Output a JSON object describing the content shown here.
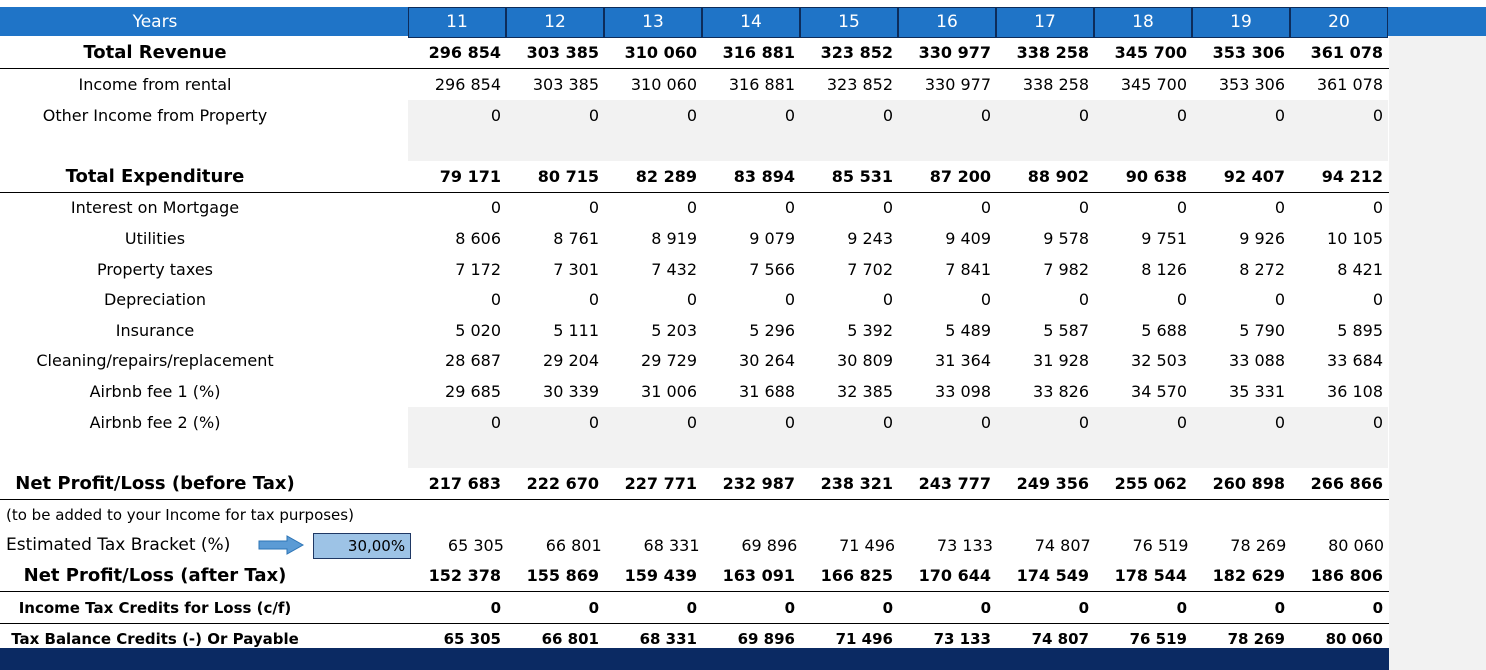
{
  "header": {
    "label": "Years",
    "years": [
      "11",
      "12",
      "13",
      "14",
      "15",
      "16",
      "17",
      "18",
      "19",
      "20"
    ]
  },
  "rows": [
    {
      "key": "total_revenue",
      "label": "Total Revenue",
      "values": [
        "296 854",
        "303 385",
        "310 060",
        "316 881",
        "323 852",
        "330 977",
        "338 258",
        "345 700",
        "353 306",
        "361 078"
      ]
    },
    {
      "key": "income_rental",
      "label": "Income from rental",
      "values": [
        "296 854",
        "303 385",
        "310 060",
        "316 881",
        "323 852",
        "330 977",
        "338 258",
        "345 700",
        "353 306",
        "361 078"
      ]
    },
    {
      "key": "other_income",
      "label": "Other Income from Property",
      "values": [
        "0",
        "0",
        "0",
        "0",
        "0",
        "0",
        "0",
        "0",
        "0",
        "0"
      ]
    },
    {
      "key": "total_expenditure",
      "label": "Total Expenditure",
      "values": [
        "79 171",
        "80 715",
        "82 289",
        "83 894",
        "85 531",
        "87 200",
        "88 902",
        "90 638",
        "92 407",
        "94 212"
      ]
    },
    {
      "key": "interest_mortgage",
      "label": "Interest on Mortgage",
      "values": [
        "0",
        "0",
        "0",
        "0",
        "0",
        "0",
        "0",
        "0",
        "0",
        "0"
      ]
    },
    {
      "key": "utilities",
      "label": "Utilities",
      "values": [
        "8 606",
        "8 761",
        "8 919",
        "9 079",
        "9 243",
        "9 409",
        "9 578",
        "9 751",
        "9 926",
        "10 105"
      ]
    },
    {
      "key": "property_taxes",
      "label": "Property taxes",
      "values": [
        "7 172",
        "7 301",
        "7 432",
        "7 566",
        "7 702",
        "7 841",
        "7 982",
        "8 126",
        "8 272",
        "8 421"
      ]
    },
    {
      "key": "depreciation",
      "label": "Depreciation",
      "values": [
        "0",
        "0",
        "0",
        "0",
        "0",
        "0",
        "0",
        "0",
        "0",
        "0"
      ]
    },
    {
      "key": "insurance",
      "label": "Insurance",
      "values": [
        "5 020",
        "5 111",
        "5 203",
        "5 296",
        "5 392",
        "5 489",
        "5 587",
        "5 688",
        "5 790",
        "5 895"
      ]
    },
    {
      "key": "cleaning",
      "label": "Cleaning/repairs/replacement",
      "values": [
        "28 687",
        "29 204",
        "29 729",
        "30 264",
        "30 809",
        "31 364",
        "31 928",
        "32 503",
        "33 088",
        "33 684"
      ]
    },
    {
      "key": "airbnb_fee1",
      "label": "Airbnb fee 1 (%)",
      "values": [
        "29 685",
        "30 339",
        "31 006",
        "31 688",
        "32 385",
        "33 098",
        "33 826",
        "34 570",
        "35 331",
        "36 108"
      ]
    },
    {
      "key": "airbnb_fee2",
      "label": "Airbnb fee 2 (%)",
      "values": [
        "0",
        "0",
        "0",
        "0",
        "0",
        "0",
        "0",
        "0",
        "0",
        "0"
      ]
    },
    {
      "key": "net_before_tax",
      "label": "Net Profit/Loss (before Tax)",
      "values": [
        "217 683",
        "222 670",
        "227 771",
        "232 987",
        "238 321",
        "243 777",
        "249 356",
        "255 062",
        "260 898",
        "266 866"
      ]
    },
    {
      "key": "tax",
      "label": "Estimated Tax Bracket (%)",
      "values": [
        "65 305",
        "66 801",
        "68 331",
        "69 896",
        "71 496",
        "73 133",
        "74 807",
        "76 519",
        "78 269",
        "80 060"
      ]
    },
    {
      "key": "net_after_tax",
      "label": "Net Profit/Loss (after Tax)",
      "values": [
        "152 378",
        "155 869",
        "159 439",
        "163 091",
        "166 825",
        "170 644",
        "174 549",
        "178 544",
        "182 629",
        "186 806"
      ]
    },
    {
      "key": "tax_credits",
      "label": "Income Tax Credits for Loss (c/f)",
      "values": [
        "0",
        "0",
        "0",
        "0",
        "0",
        "0",
        "0",
        "0",
        "0",
        "0"
      ]
    },
    {
      "key": "tax_balance",
      "label": "Tax Balance Credits (-) Or Payable",
      "values": [
        "65 305",
        "66 801",
        "68 331",
        "69 896",
        "71 496",
        "73 133",
        "74 807",
        "76 519",
        "78 269",
        "80 060"
      ]
    }
  ],
  "note": "(to be added to your Income for tax purposes)",
  "tax_bracket_value": "30,00%",
  "colors": {
    "header_blue": "#1f74c7",
    "dark_navy": "#0b2a63",
    "input_blue": "#9dc3e6"
  }
}
